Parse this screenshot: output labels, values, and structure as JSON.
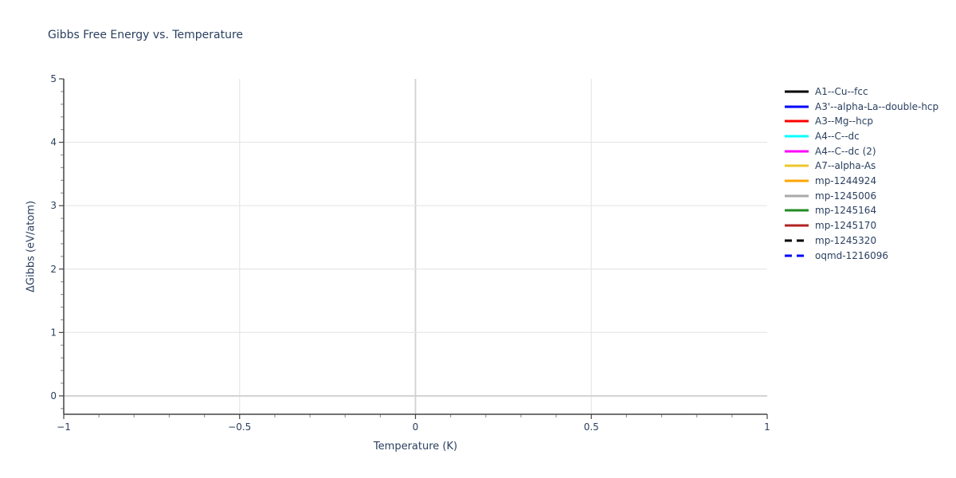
{
  "window": {
    "background": "#ffffff"
  },
  "chart_data": {
    "type": "line",
    "title": "Gibbs Free Energy vs. Temperature",
    "xlabel": "Temperature (K)",
    "ylabel": "ΔGibbs (eV/atom)",
    "xlim": [
      -1,
      1
    ],
    "ylim": [
      -0.29,
      5
    ],
    "xticks": [
      {
        "value": -1,
        "label": "−1"
      },
      {
        "value": -0.5,
        "label": "−0.5"
      },
      {
        "value": 0,
        "label": "0"
      },
      {
        "value": 0.5,
        "label": "0.5"
      },
      {
        "value": 1,
        "label": "1"
      }
    ],
    "yticks": [
      {
        "value": 0,
        "label": "0"
      },
      {
        "value": 1,
        "label": "1"
      },
      {
        "value": 2,
        "label": "2"
      },
      {
        "value": 3,
        "label": "3"
      },
      {
        "value": 4,
        "label": "4"
      },
      {
        "value": 5,
        "label": "5"
      }
    ],
    "x_minor_step": 0.1,
    "y_minor_step": 0.2,
    "grid": true,
    "zerolines": true,
    "legend_position": "outside-right-top",
    "series": [
      {
        "name": "A1--Cu--fcc",
        "color": "#000000",
        "dash": "solid",
        "points": []
      },
      {
        "name": "A3'--alpha-La--double-hcp",
        "color": "#0000ff",
        "dash": "solid",
        "points": []
      },
      {
        "name": "A3--Mg--hcp",
        "color": "#ff0000",
        "dash": "solid",
        "points": []
      },
      {
        "name": "A4--C--dc",
        "color": "#00ffff",
        "dash": "solid",
        "points": []
      },
      {
        "name": "A4--C--dc (2)",
        "color": "#ff00ff",
        "dash": "solid",
        "points": []
      },
      {
        "name": "A7--alpha-As",
        "color": "#edc72c",
        "dash": "solid",
        "points": []
      },
      {
        "name": "mp-1244924",
        "color": "#ffa500",
        "dash": "solid",
        "points": []
      },
      {
        "name": "mp-1245006",
        "color": "#a9a9a9",
        "dash": "solid",
        "points": []
      },
      {
        "name": "mp-1245164",
        "color": "#228b22",
        "dash": "solid",
        "points": []
      },
      {
        "name": "mp-1245170",
        "color": "#b22222",
        "dash": "solid",
        "points": []
      },
      {
        "name": "mp-1245320",
        "color": "#000000",
        "dash": "dashed",
        "points": []
      },
      {
        "name": "oqmd-1216096",
        "color": "#0000ff",
        "dash": "dashed",
        "points": []
      }
    ],
    "data_note": "No curves are visible inside the plotted range; the plot area is empty.",
    "colors": {
      "font": "#2a3f5f",
      "axis_line": "#444444",
      "grid": "#e6e6e6",
      "zeroline": "#d1d1d1",
      "minor_tick": "#999999",
      "background": "#ffffff"
    }
  }
}
